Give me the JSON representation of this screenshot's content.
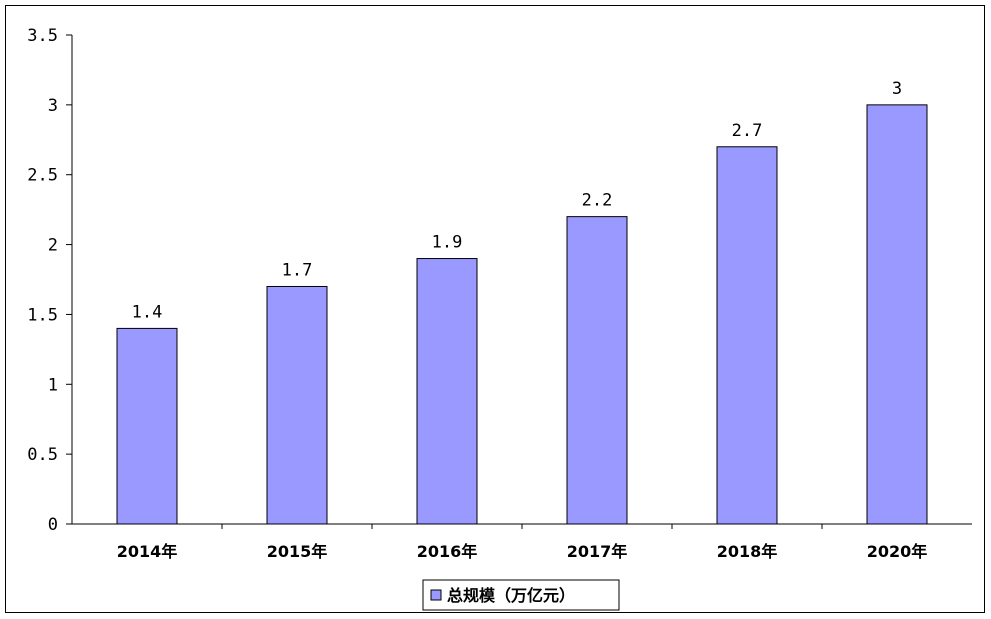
{
  "chart_data": {
    "type": "bar",
    "categories": [
      "2014年",
      "2015年",
      "2016年",
      "2017年",
      "2018年",
      "2020年"
    ],
    "series": [
      {
        "name": "总规模（万亿元）",
        "values": [
          1.4,
          1.7,
          1.9,
          2.2,
          2.7,
          3
        ],
        "data_labels": [
          "1.4",
          "1.7",
          "1.9",
          "2.2",
          "2.7",
          "3"
        ],
        "color": "#9999ff"
      }
    ],
    "ylim": [
      0,
      3.5
    ],
    "yticks": [
      0,
      0.5,
      1,
      1.5,
      2,
      2.5,
      3,
      3.5
    ],
    "ytick_labels": [
      "0",
      "0.5",
      "1",
      "1.5",
      "2",
      "2.5",
      "3",
      "3.5"
    ],
    "grid": false,
    "legend_position": "bottom",
    "xlabel": "",
    "ylabel": "",
    "title": ""
  }
}
